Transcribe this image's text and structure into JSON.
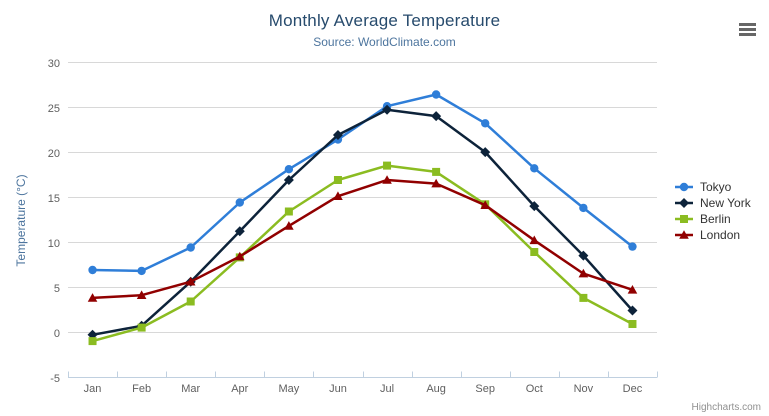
{
  "chart": {
    "title": "Monthly Average Temperature",
    "subtitle": "Source: WorldClimate.com",
    "y_axis_title": "Temperature (°C)",
    "credits": "Highcharts.com"
  },
  "colors": {
    "title": "#274b6d",
    "subtitle": "#4d759e",
    "axis_label": "#606060",
    "axis_title": "#4d759e",
    "gridline": "#d8d8d8",
    "axis_line": "#c0d0e0",
    "legend_text": "#333333",
    "credits": "#909090",
    "context_button": "#666666",
    "background": "#ffffff"
  },
  "chart_data": {
    "type": "line",
    "title": "Monthly Average Temperature",
    "subtitle": "Source: WorldClimate.com",
    "xlabel": "",
    "ylabel": "Temperature (°C)",
    "ylim": [
      -5,
      30
    ],
    "ytick_interval": 5,
    "grid": true,
    "legend_position": "right",
    "categories": [
      "Jan",
      "Feb",
      "Mar",
      "Apr",
      "May",
      "Jun",
      "Jul",
      "Aug",
      "Sep",
      "Oct",
      "Nov",
      "Dec"
    ],
    "series": [
      {
        "name": "Tokyo",
        "color": "#2f7ed8",
        "marker": "circle",
        "values": [
          7.0,
          6.9,
          9.5,
          14.5,
          18.2,
          21.5,
          25.2,
          26.5,
          23.3,
          18.3,
          13.9,
          9.6
        ]
      },
      {
        "name": "New York",
        "color": "#0d233a",
        "marker": "diamond",
        "values": [
          -0.2,
          0.8,
          5.7,
          11.3,
          17.0,
          22.0,
          24.8,
          24.1,
          20.1,
          14.1,
          8.6,
          2.5
        ]
      },
      {
        "name": "Berlin",
        "color": "#8bbc21",
        "marker": "square",
        "values": [
          -0.9,
          0.6,
          3.5,
          8.4,
          13.5,
          17.0,
          18.6,
          17.9,
          14.3,
          9.0,
          3.9,
          1.0
        ]
      },
      {
        "name": "London",
        "color": "#910000",
        "marker": "triangle",
        "values": [
          3.9,
          4.2,
          5.7,
          8.5,
          11.9,
          15.2,
          17.0,
          16.6,
          14.2,
          10.3,
          6.6,
          4.8
        ]
      }
    ]
  }
}
